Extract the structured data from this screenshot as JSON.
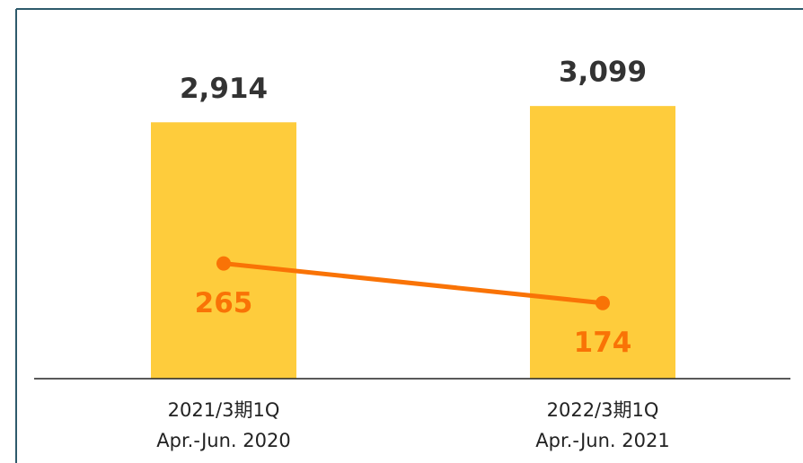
{
  "chart_data": {
    "type": "combo",
    "categories": [
      [
        "2021/3期1Q",
        "Apr.-Jun. 2020"
      ],
      [
        "2022/3期1Q",
        "Apr.-Jun. 2021"
      ]
    ],
    "series": [
      {
        "type": "bar",
        "color": "#fecc3c",
        "label_color": "#333333",
        "values": [
          2914,
          3099
        ],
        "value_labels": [
          "2,914",
          "3,099"
        ]
      },
      {
        "type": "line",
        "color": "#f97306",
        "axis": "y2",
        "values": [
          265,
          174
        ]
      }
    ],
    "ylim": [
      0,
      4100
    ],
    "y2lim": [
      0,
      830
    ]
  }
}
